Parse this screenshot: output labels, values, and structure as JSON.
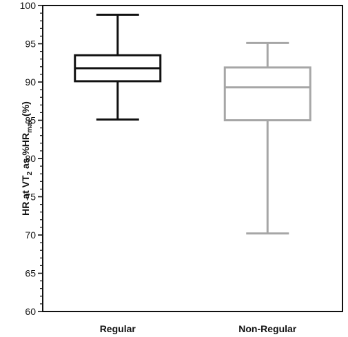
{
  "chart_data": {
    "type": "box",
    "ylabel": {
      "prefix": "HR at VT",
      "sub1": "2",
      "middle": " as %HR",
      "sub2": "max",
      "suffix": " (%)"
    },
    "ylim": [
      60,
      100
    ],
    "yticks": [
      60,
      65,
      70,
      75,
      80,
      85,
      90,
      95,
      100
    ],
    "ytick_labels": [
      "60",
      "65",
      "70",
      "75",
      "80",
      "85",
      "90",
      "95",
      "100"
    ],
    "minor_tick_step": 1,
    "categories": [
      "Regular",
      "Non-Regular"
    ],
    "boxes": [
      {
        "min": 85.1,
        "q1": 90.1,
        "median": 91.8,
        "q3": 93.5,
        "max": 98.8,
        "color": "#111111"
      },
      {
        "min": 70.2,
        "q1": 85.0,
        "median": 89.3,
        "q3": 91.9,
        "max": 95.1,
        "color": "#a6a6a6"
      }
    ],
    "grid": false
  }
}
